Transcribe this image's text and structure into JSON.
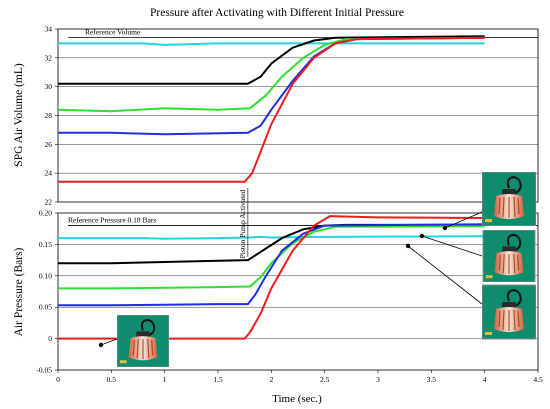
{
  "chart_data": {
    "type": "line",
    "title": "Pressure after Activating with Different Initial Pressure",
    "xlabel": "Time (sec.)",
    "xlim": [
      0,
      4.5
    ],
    "x_ticks": [
      "0",
      "0.5",
      "1",
      "1.5",
      "2",
      "2.5",
      "3",
      "3.5",
      "4",
      "4.5"
    ],
    "colors": {
      "cyan": "#22d4e0",
      "black": "#000000",
      "green": "#2ee02e",
      "blue": "#1f2ee0",
      "red": "#ee1c1c"
    },
    "top_panel": {
      "ylabel": "SPG Air Volume (mL)",
      "ylim": [
        22,
        34
      ],
      "y_ticks": [
        "22",
        "24",
        "26",
        "28",
        "30",
        "32",
        "34"
      ],
      "annotations": {
        "reference_label": "Reference Volume",
        "reference_value": 33.4
      },
      "series": [
        {
          "color": "cyan",
          "x": [
            0,
            0.8,
            1.0,
            1.5,
            2.0,
            2.5,
            4.0
          ],
          "y": [
            33.0,
            33.0,
            32.9,
            33.0,
            33.0,
            33.0,
            33.0
          ]
        },
        {
          "color": "black",
          "x": [
            0,
            0.5,
            1.0,
            1.78,
            1.9,
            2.0,
            2.2,
            2.4,
            2.6,
            4.0
          ],
          "y": [
            30.2,
            30.2,
            30.2,
            30.2,
            30.7,
            31.6,
            32.7,
            33.2,
            33.4,
            33.5
          ]
        },
        {
          "color": "green",
          "x": [
            0,
            0.5,
            1.0,
            1.5,
            1.8,
            1.95,
            2.1,
            2.3,
            2.5,
            2.7,
            4.0
          ],
          "y": [
            28.4,
            28.3,
            28.5,
            28.4,
            28.5,
            29.4,
            30.7,
            32.0,
            32.9,
            33.3,
            33.4
          ]
        },
        {
          "color": "blue",
          "x": [
            0,
            0.5,
            1.0,
            1.78,
            1.9,
            2.0,
            2.2,
            2.4,
            2.6,
            2.8,
            4.0
          ],
          "y": [
            26.8,
            26.8,
            26.7,
            26.8,
            27.3,
            28.4,
            30.4,
            32.1,
            33.0,
            33.3,
            33.4
          ]
        },
        {
          "color": "red",
          "x": [
            0,
            1.0,
            1.75,
            1.82,
            1.9,
            2.0,
            2.2,
            2.4,
            2.6,
            2.8,
            4.0
          ],
          "y": [
            23.4,
            23.4,
            23.4,
            24.0,
            25.5,
            27.4,
            30.2,
            32.0,
            33.0,
            33.3,
            33.4
          ]
        }
      ]
    },
    "bottom_panel": {
      "ylabel": "Air Pressure (Bars)",
      "ylim": [
        -0.05,
        0.2
      ],
      "y_ticks": [
        "-0.05",
        "0",
        "0.05",
        "0.10",
        "0.15",
        "0.20"
      ],
      "annotations": {
        "reference_label": "Reference Pressure 0.18 Bars",
        "reference_value": 0.18,
        "vertical_label": "Piston Pump Activated",
        "vertical_x": 1.78
      },
      "series": [
        {
          "color": "cyan",
          "x": [
            0,
            0.8,
            1.0,
            1.5,
            1.78,
            1.9,
            2.0,
            2.5,
            4.0
          ],
          "y": [
            0.16,
            0.16,
            0.159,
            0.16,
            0.161,
            0.162,
            0.161,
            0.162,
            0.163
          ]
        },
        {
          "color": "black",
          "x": [
            0,
            0.5,
            1.0,
            1.5,
            1.78,
            1.9,
            2.1,
            2.3,
            2.5,
            2.7,
            4.0
          ],
          "y": [
            0.12,
            0.12,
            0.122,
            0.124,
            0.125,
            0.138,
            0.16,
            0.174,
            0.18,
            0.181,
            0.181
          ]
        },
        {
          "color": "green",
          "x": [
            0,
            0.5,
            1.0,
            1.5,
            1.8,
            1.9,
            2.0,
            2.2,
            2.4,
            2.6,
            4.0
          ],
          "y": [
            0.08,
            0.08,
            0.081,
            0.082,
            0.083,
            0.098,
            0.12,
            0.152,
            0.17,
            0.178,
            0.179
          ]
        },
        {
          "color": "blue",
          "x": [
            0,
            0.5,
            1.0,
            1.5,
            1.78,
            1.85,
            1.95,
            2.1,
            2.3,
            2.5,
            4.0
          ],
          "y": [
            0.053,
            0.053,
            0.054,
            0.055,
            0.055,
            0.07,
            0.1,
            0.14,
            0.167,
            0.18,
            0.182
          ]
        },
        {
          "color": "red",
          "x": [
            0,
            1.0,
            1.75,
            1.8,
            1.9,
            2.0,
            2.2,
            2.4,
            2.55,
            3.0,
            4.0
          ],
          "y": [
            0,
            0,
            0,
            0.01,
            0.04,
            0.08,
            0.14,
            0.18,
            0.195,
            0.193,
            0.192
          ]
        }
      ]
    }
  }
}
